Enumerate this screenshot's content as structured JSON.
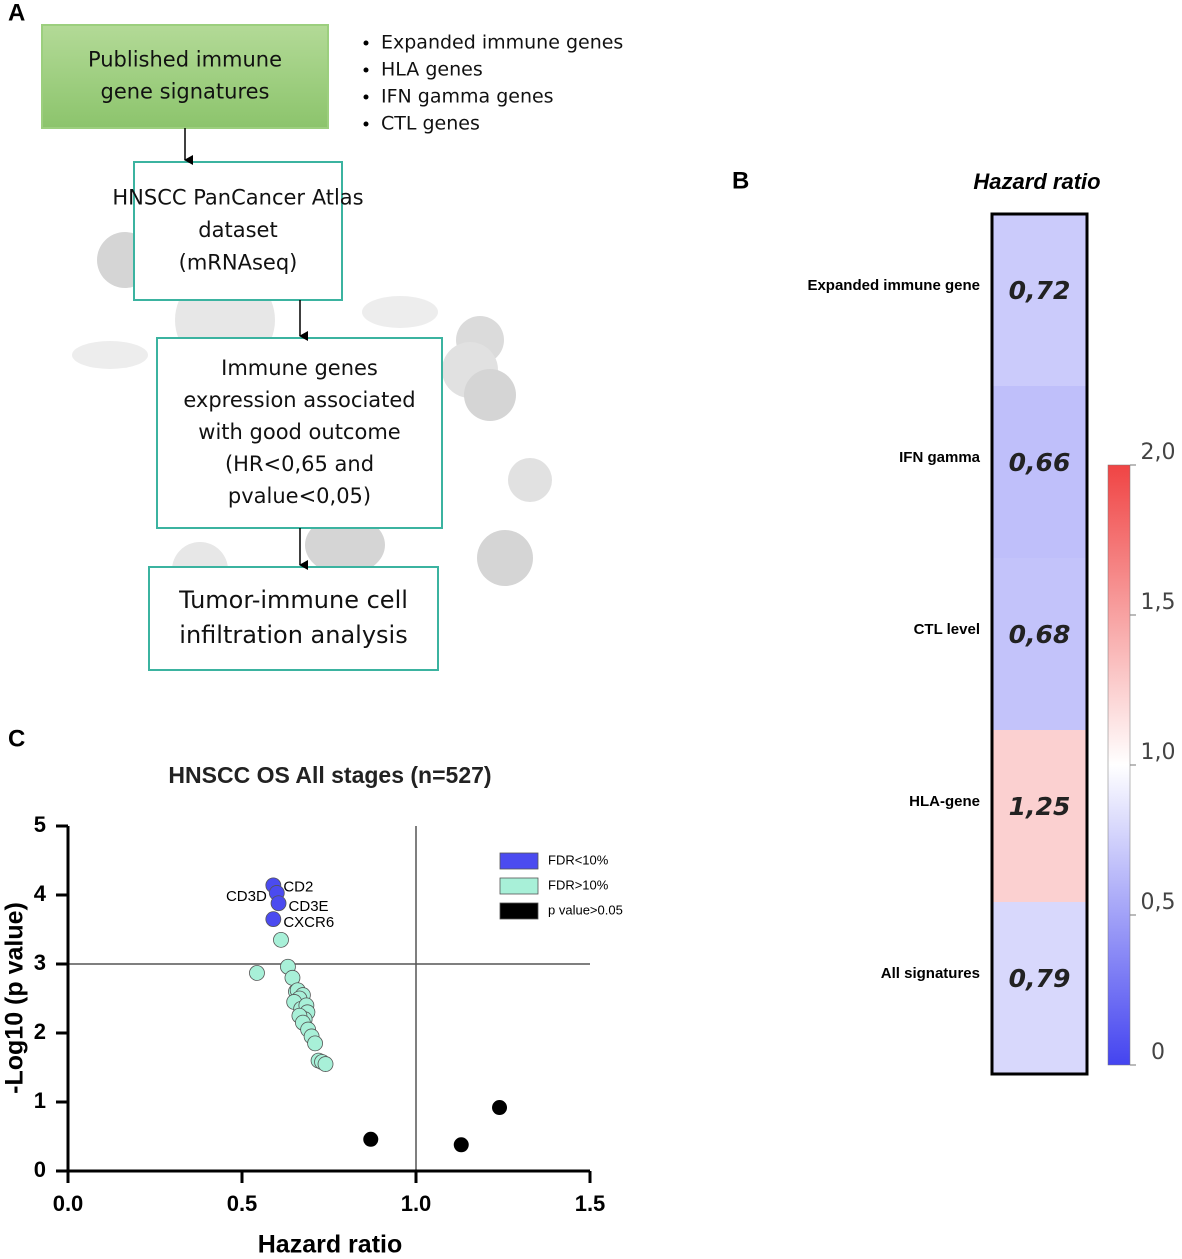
{
  "panel_labels": [
    "A",
    "B",
    "C"
  ],
  "flowchart": {
    "steps": [
      {
        "lines": [
          "Published immune",
          "gene signatures"
        ]
      },
      {
        "lines": [
          "HNSCC PanCancer Atlas",
          "dataset",
          "(mRNAseq)"
        ]
      },
      {
        "lines": [
          "Immune genes",
          "expression associated",
          "with good outcome",
          "(HR<0,65 and",
          "pvalue<0,05)"
        ]
      },
      {
        "lines": [
          "Tumor-immune cell",
          "infiltration analysis"
        ]
      }
    ],
    "bullets": [
      "Expanded immune genes",
      "HLA genes",
      "IFN gamma genes",
      "CTL genes"
    ]
  },
  "chart_data": [
    {
      "type": "heatmap",
      "title": "Hazard ratio",
      "categories": [
        "Expanded immune gene",
        "IFN gamma",
        "CTL level",
        "HLA-gene",
        "All signatures"
      ],
      "values": [
        0.72,
        0.66,
        0.68,
        1.25,
        0.79
      ],
      "value_labels": [
        "0,72",
        "0,66",
        "0,68",
        "1,25",
        "0,79"
      ],
      "colorscale": [
        "#4444f0",
        "#ffffff",
        "#f04444"
      ],
      "clim": [
        0,
        2
      ],
      "cticks": [
        {
          "value": 0,
          "label": "0"
        },
        {
          "value": 0.5,
          "label": "0,5"
        },
        {
          "value": 1,
          "label": "1,0"
        },
        {
          "value": 1.5,
          "label": "1,5"
        },
        {
          "value": 2,
          "label": "2,0"
        }
      ]
    },
    {
      "type": "scatter",
      "title": "HNSCC OS All stages (n=527)",
      "xlabel": "Hazard ratio",
      "ylabel": "-Log10 (p value)",
      "xlim": [
        0,
        1.5
      ],
      "ylim": [
        0,
        5
      ],
      "xticks": [
        {
          "value": 0,
          "label": "0.0"
        },
        {
          "value": 0.5,
          "label": "0.5"
        },
        {
          "value": 1,
          "label": "1.0"
        },
        {
          "value": 1.5,
          "label": "1.5"
        }
      ],
      "yticks": [
        0,
        1,
        2,
        3,
        4,
        5
      ],
      "reference_lines": {
        "x": 1,
        "y": 3
      },
      "legend": "upper right",
      "series": [
        {
          "name": "FDR<10%",
          "color": "#4b4bf0",
          "x": [
            0.59,
            0.6,
            0.605,
            0.59
          ],
          "values": [
            4.14,
            4.03,
            3.88,
            3.65
          ],
          "labels": [
            "CD2",
            "CD3D",
            "CD3E",
            "CXCR6"
          ]
        },
        {
          "name": "FDR>10%",
          "color": "#a8f0d8",
          "x": [
            0.612,
            0.543,
            0.632,
            0.645,
            0.655,
            0.66,
            0.675,
            0.665,
            0.65,
            0.67,
            0.685,
            0.688,
            0.68,
            0.665,
            0.675,
            0.69,
            0.7,
            0.71,
            0.72,
            0.73,
            0.74
          ],
          "values": [
            3.35,
            2.87,
            2.96,
            2.8,
            2.6,
            2.62,
            2.55,
            2.5,
            2.45,
            2.35,
            2.4,
            2.3,
            2.2,
            2.25,
            2.15,
            2.05,
            1.95,
            1.85,
            1.6,
            1.58,
            1.55
          ]
        },
        {
          "name": "p value>0.05",
          "color": "#000000",
          "x": [
            0.87,
            1.13,
            1.24
          ],
          "values": [
            0.46,
            0.38,
            0.92
          ]
        }
      ]
    }
  ]
}
